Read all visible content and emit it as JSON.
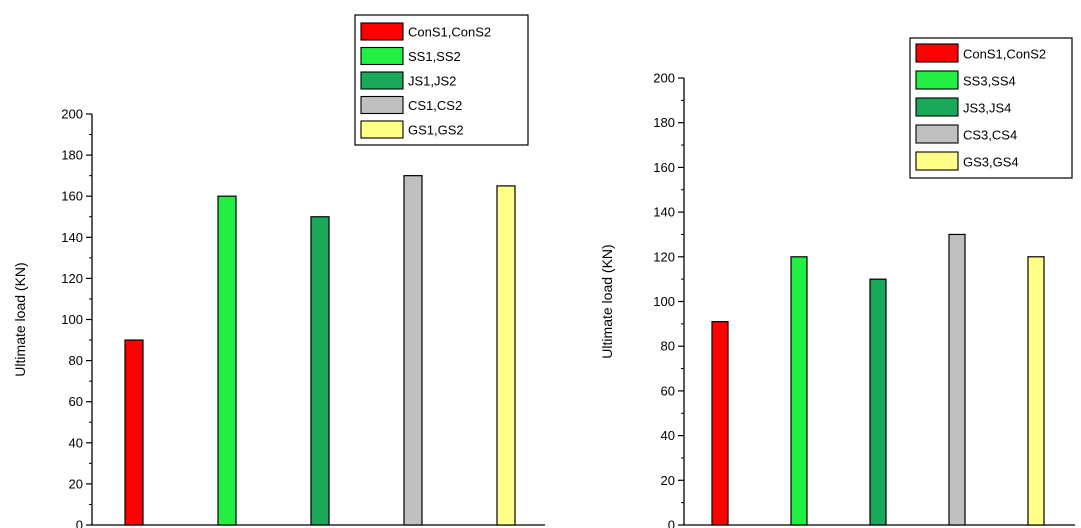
{
  "chart_data": [
    {
      "type": "bar",
      "title": "",
      "xlabel": "",
      "ylabel": "Ultimate load (KN)",
      "ylim": [
        0,
        200
      ],
      "yticks": [
        0,
        20,
        40,
        60,
        80,
        100,
        120,
        140,
        160,
        180,
        200
      ],
      "grid": false,
      "legend_position": "top-right",
      "series": [
        {
          "name": "ConS1,ConS2",
          "value": 90,
          "color": "#ff0000"
        },
        {
          "name": "SS1,SS2",
          "value": 160,
          "color": "#22ee44"
        },
        {
          "name": "JS1,JS2",
          "value": 150,
          "color": "#1aa85a"
        },
        {
          "name": "CS1,CS2",
          "value": 170,
          "color": "#c0c0c0"
        },
        {
          "name": "GS1,GS2",
          "value": 165,
          "color": "#ffff88"
        }
      ]
    },
    {
      "type": "bar",
      "title": "",
      "xlabel": "",
      "ylabel": "Ultimate load (KN)",
      "ylim": [
        0,
        200
      ],
      "yticks": [
        0,
        20,
        40,
        60,
        80,
        100,
        120,
        140,
        160,
        180,
        200
      ],
      "grid": false,
      "legend_position": "top-right",
      "series": [
        {
          "name": "ConS1,ConS2",
          "value": 91,
          "color": "#ff0000"
        },
        {
          "name": "SS3,SS4",
          "value": 120,
          "color": "#22ee44"
        },
        {
          "name": "JS3,JS4",
          "value": 110,
          "color": "#1aa85a"
        },
        {
          "name": "CS3,CS4",
          "value": 130,
          "color": "#c0c0c0"
        },
        {
          "name": "GS3,GS4",
          "value": 120,
          "color": "#ffff88"
        }
      ]
    }
  ]
}
